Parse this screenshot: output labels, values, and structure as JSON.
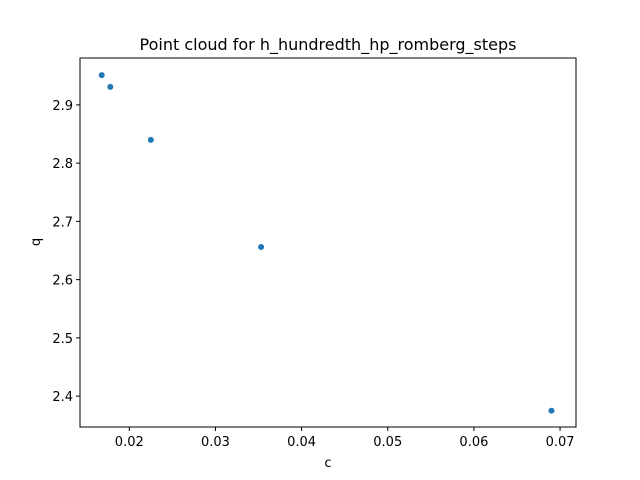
{
  "chart_data": {
    "type": "scatter",
    "title": "Point cloud for h_hundredth_hp_romberg_steps",
    "xlabel": "c",
    "ylabel": "q",
    "xlim": [
      0.01428,
      0.07185
    ],
    "ylim": [
      2.347,
      2.9805
    ],
    "xticks": [
      0.02,
      0.03,
      0.04,
      0.05,
      0.06,
      0.07
    ],
    "xtick_labels": [
      "0.02",
      "0.03",
      "0.04",
      "0.05",
      "0.06",
      "0.07"
    ],
    "yticks": [
      2.4,
      2.5,
      2.6,
      2.7,
      2.8,
      2.9
    ],
    "ytick_labels": [
      "2.4",
      "2.5",
      "2.6",
      "2.7",
      "2.8",
      "2.9"
    ],
    "grid": false,
    "marker_color": "#1f77b4",
    "points": [
      {
        "x": 0.0168,
        "y": 2.951
      },
      {
        "x": 0.0178,
        "y": 2.931
      },
      {
        "x": 0.0225,
        "y": 2.84
      },
      {
        "x": 0.0353,
        "y": 2.656
      },
      {
        "x": 0.069,
        "y": 2.375
      }
    ]
  }
}
